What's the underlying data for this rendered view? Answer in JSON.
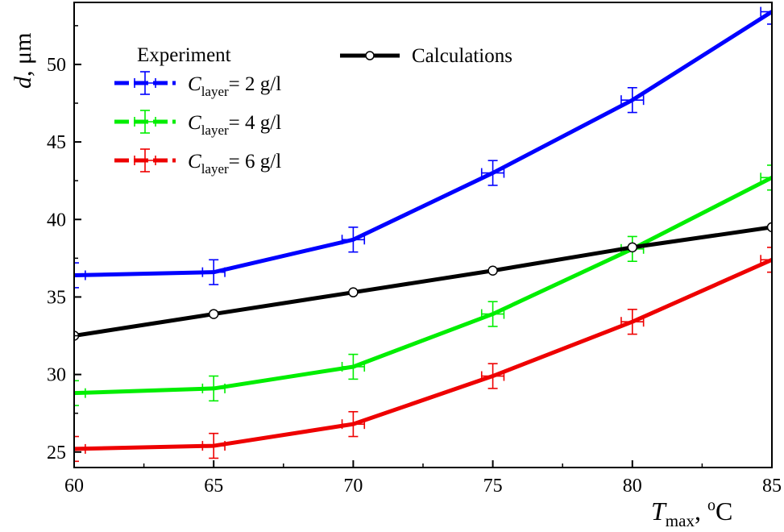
{
  "chart_data": {
    "type": "line",
    "title": "",
    "xlabel": {
      "symbol": "T",
      "subscript": "max",
      "unit_prefix": ", ",
      "unit_sup": "o",
      "unit": "C"
    },
    "ylabel": {
      "symbol": "d",
      "unit": ", μm"
    },
    "xlim": [
      60,
      85
    ],
    "ylim": [
      24,
      54
    ],
    "x_ticks": [
      60,
      65,
      70,
      75,
      80,
      85
    ],
    "y_ticks": [
      25,
      30,
      35,
      40,
      45,
      50
    ],
    "x": [
      60,
      65,
      70,
      75,
      80,
      85
    ],
    "legend_groups": {
      "experiment": "Experiment",
      "calculations": "Calculations"
    },
    "series": [
      {
        "name": "C_layer= 2 g/l",
        "symbol": "C",
        "subscript": "layer",
        "label_rest": "= 2 g/l",
        "color": "#0000ff",
        "kind": "experiment",
        "values": [
          36.4,
          36.6,
          38.7,
          43.0,
          47.7,
          53.4
        ]
      },
      {
        "name": "C_layer= 4 g/l",
        "symbol": "C",
        "subscript": "layer",
        "label_rest": "= 4 g/l",
        "color": "#00ee00",
        "kind": "experiment",
        "values": [
          28.8,
          29.1,
          30.5,
          33.9,
          38.1,
          42.7
        ]
      },
      {
        "name": "C_layer= 6 g/l",
        "symbol": "C",
        "subscript": "layer",
        "label_rest": "= 6 g/l",
        "color": "#ee0000",
        "kind": "experiment",
        "values": [
          25.2,
          25.4,
          26.8,
          29.9,
          33.4,
          37.4
        ]
      },
      {
        "name": "Calculations",
        "color": "#000000",
        "kind": "calculation",
        "values": [
          32.5,
          33.9,
          35.3,
          36.7,
          38.2,
          39.5
        ]
      }
    ],
    "error_bars": {
      "x": 0.4,
      "y": 0.8
    },
    "legend_position": "top-left"
  }
}
